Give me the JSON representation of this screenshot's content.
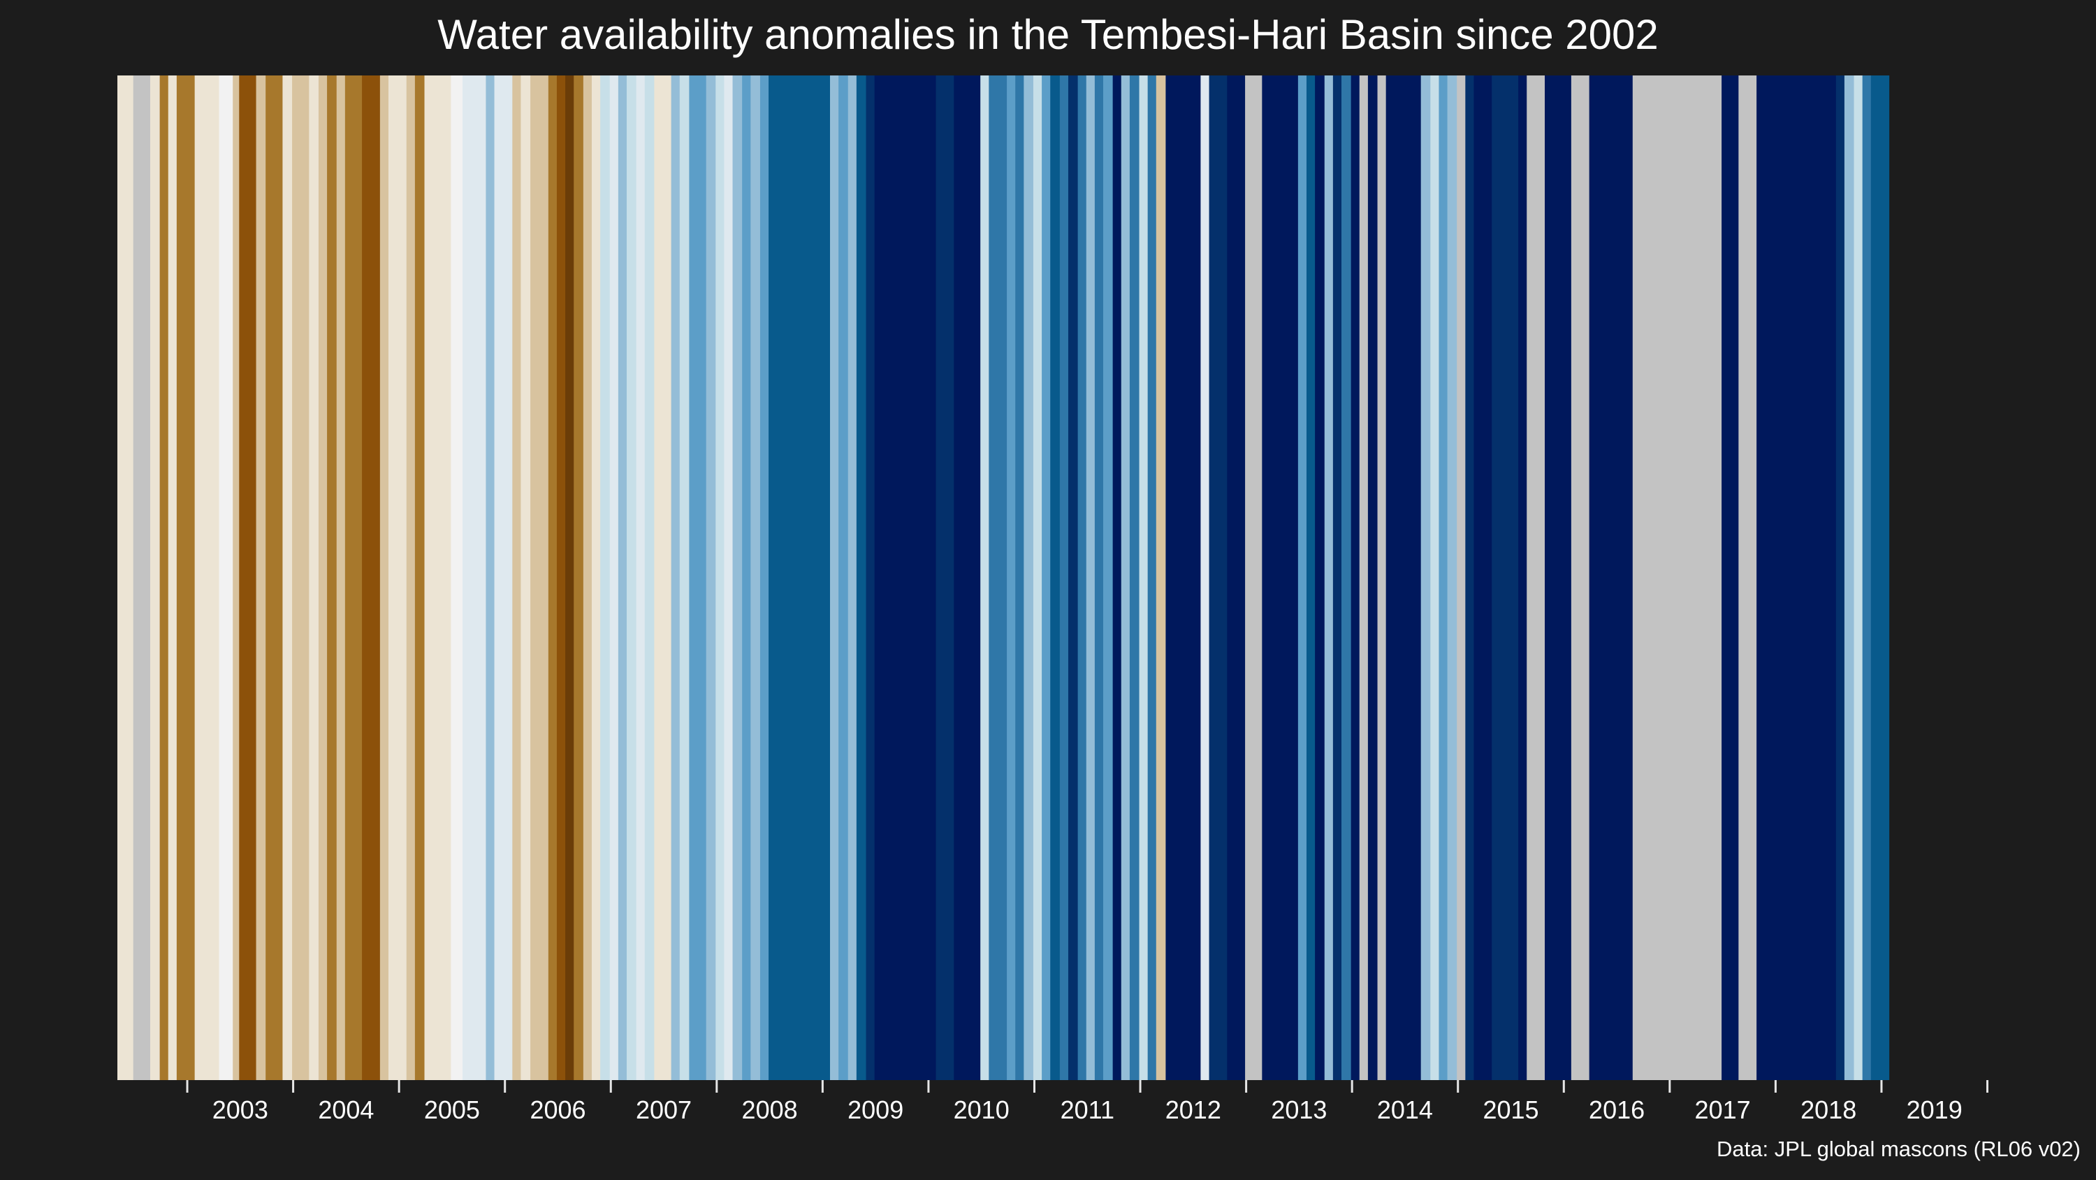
{
  "chart_data": {
    "type": "heatmap",
    "title": "Water availability anomalies in the Tembesi-Hari Basin since 2002",
    "caption": "Data: JPL global mascons (RL06 v02)",
    "xlabel": "",
    "ylabel": "",
    "x_tick_labels": [
      "2003",
      "2004",
      "2005",
      "2006",
      "2007",
      "2008",
      "2009",
      "2010",
      "2011",
      "2012",
      "2013",
      "2014",
      "2015",
      "2016",
      "2017",
      "2018",
      "2019"
    ],
    "time_range": [
      "2002-04",
      "2020-01"
    ],
    "color_scale": {
      "palette": "brown-to-blue diverging",
      "missing_color": "#c3c3c3",
      "colors": [
        "#8c510a",
        "#bf812d",
        "#dfc27d",
        "#f6e8c3",
        "#f5f5f5",
        "#c7eae5",
        "#80cdc1",
        "#35978f",
        "#01665e"
      ]
    },
    "stripes": [
      {
        "start": 2002.29,
        "end": 2002.44,
        "color": "#ece4d4"
      },
      {
        "start": 2002.44,
        "end": 2002.6,
        "color": "#c3c3c3"
      },
      {
        "start": 2002.6,
        "end": 2002.69,
        "color": "#ece4d4"
      },
      {
        "start": 2002.69,
        "end": 2002.77,
        "color": "#a7782c"
      },
      {
        "start": 2002.77,
        "end": 2002.85,
        "color": "#ece4d4"
      },
      {
        "start": 2002.85,
        "end": 2003.02,
        "color": "#a7782c"
      },
      {
        "start": 2003.02,
        "end": 2003.25,
        "color": "#ece4d4"
      },
      {
        "start": 2003.25,
        "end": 2003.38,
        "color": "#f2f2f2"
      },
      {
        "start": 2003.38,
        "end": 2003.44,
        "color": "#d8c39f"
      },
      {
        "start": 2003.44,
        "end": 2003.6,
        "color": "#8c510a"
      },
      {
        "start": 2003.6,
        "end": 2003.69,
        "color": "#d8c39f"
      },
      {
        "start": 2003.69,
        "end": 2003.85,
        "color": "#a7782c"
      },
      {
        "start": 2003.85,
        "end": 2003.94,
        "color": "#ece4d4"
      },
      {
        "start": 2003.94,
        "end": 2004.1,
        "color": "#d8c39f"
      },
      {
        "start": 2004.1,
        "end": 2004.19,
        "color": "#ece4d4"
      },
      {
        "start": 2004.19,
        "end": 2004.27,
        "color": "#d8c39f"
      },
      {
        "start": 2004.27,
        "end": 2004.36,
        "color": "#a7782c"
      },
      {
        "start": 2004.36,
        "end": 2004.44,
        "color": "#d8c39f"
      },
      {
        "start": 2004.44,
        "end": 2004.6,
        "color": "#a7782c"
      },
      {
        "start": 2004.6,
        "end": 2004.77,
        "color": "#8c510a"
      },
      {
        "start": 2004.77,
        "end": 2004.85,
        "color": "#d8c39f"
      },
      {
        "start": 2004.85,
        "end": 2005.02,
        "color": "#ece4d4"
      },
      {
        "start": 2005.02,
        "end": 2005.1,
        "color": "#d8c39f"
      },
      {
        "start": 2005.1,
        "end": 2005.19,
        "color": "#a7782c"
      },
      {
        "start": 2005.19,
        "end": 2005.44,
        "color": "#ece4d4"
      },
      {
        "start": 2005.44,
        "end": 2005.55,
        "color": "#f2f2f2"
      },
      {
        "start": 2005.55,
        "end": 2005.77,
        "color": "#dfe9ef"
      },
      {
        "start": 2005.77,
        "end": 2005.85,
        "color": "#94bdd7"
      },
      {
        "start": 2005.85,
        "end": 2006.02,
        "color": "#dfe9ef"
      },
      {
        "start": 2006.02,
        "end": 2006.1,
        "color": "#d8c39f"
      },
      {
        "start": 2006.1,
        "end": 2006.19,
        "color": "#ece4d4"
      },
      {
        "start": 2006.19,
        "end": 2006.36,
        "color": "#d8c39f"
      },
      {
        "start": 2006.36,
        "end": 2006.44,
        "color": "#a7782c"
      },
      {
        "start": 2006.44,
        "end": 2006.52,
        "color": "#8c510a"
      },
      {
        "start": 2006.52,
        "end": 2006.6,
        "color": "#6b3d08"
      },
      {
        "start": 2006.6,
        "end": 2006.69,
        "color": "#a7782c"
      },
      {
        "start": 2006.69,
        "end": 2006.77,
        "color": "#d8c39f"
      },
      {
        "start": 2006.77,
        "end": 2006.85,
        "color": "#ece4d4"
      },
      {
        "start": 2006.85,
        "end": 2006.94,
        "color": "#c7dfe8"
      },
      {
        "start": 2006.94,
        "end": 2007.02,
        "color": "#dfe9ef"
      },
      {
        "start": 2007.02,
        "end": 2007.1,
        "color": "#94bdd7"
      },
      {
        "start": 2007.1,
        "end": 2007.19,
        "color": "#c7dfe8"
      },
      {
        "start": 2007.19,
        "end": 2007.27,
        "color": "#dfe9ef"
      },
      {
        "start": 2007.27,
        "end": 2007.36,
        "color": "#c7dfe8"
      },
      {
        "start": 2007.36,
        "end": 2007.52,
        "color": "#ece4d4"
      },
      {
        "start": 2007.52,
        "end": 2007.6,
        "color": "#94bdd7"
      },
      {
        "start": 2007.6,
        "end": 2007.69,
        "color": "#c7dfe8"
      },
      {
        "start": 2007.69,
        "end": 2007.85,
        "color": "#5c9ec8"
      },
      {
        "start": 2007.85,
        "end": 2007.94,
        "color": "#94bdd7"
      },
      {
        "start": 2007.94,
        "end": 2008.02,
        "color": "#c7dfe8"
      },
      {
        "start": 2008.02,
        "end": 2008.1,
        "color": "#dfe9ef"
      },
      {
        "start": 2008.1,
        "end": 2008.19,
        "color": "#94bdd7"
      },
      {
        "start": 2008.19,
        "end": 2008.27,
        "color": "#5c9ec8"
      },
      {
        "start": 2008.27,
        "end": 2008.36,
        "color": "#94bdd7"
      },
      {
        "start": 2008.36,
        "end": 2008.44,
        "color": "#5c9ec8"
      },
      {
        "start": 2008.44,
        "end": 2009.02,
        "color": "#085a8c"
      },
      {
        "start": 2009.02,
        "end": 2009.1,
        "color": "#94bdd7"
      },
      {
        "start": 2009.1,
        "end": 2009.19,
        "color": "#5c9ec8"
      },
      {
        "start": 2009.19,
        "end": 2009.27,
        "color": "#94bdd7"
      },
      {
        "start": 2009.27,
        "end": 2009.36,
        "color": "#085a8c"
      },
      {
        "start": 2009.36,
        "end": 2009.44,
        "color": "#04306b"
      },
      {
        "start": 2009.44,
        "end": 2010.02,
        "color": "#00185c"
      },
      {
        "start": 2010.02,
        "end": 2010.19,
        "color": "#04306b"
      },
      {
        "start": 2010.19,
        "end": 2010.44,
        "color": "#00185c"
      },
      {
        "start": 2010.44,
        "end": 2010.52,
        "color": "#c7dfe8"
      },
      {
        "start": 2010.52,
        "end": 2010.69,
        "color": "#2f77a8"
      },
      {
        "start": 2010.69,
        "end": 2010.77,
        "color": "#5c9ec8"
      },
      {
        "start": 2010.77,
        "end": 2010.85,
        "color": "#2f77a8"
      },
      {
        "start": 2010.85,
        "end": 2010.94,
        "color": "#94bdd7"
      },
      {
        "start": 2010.94,
        "end": 2011.02,
        "color": "#c7dfe8"
      },
      {
        "start": 2011.02,
        "end": 2011.1,
        "color": "#5c9ec8"
      },
      {
        "start": 2011.1,
        "end": 2011.19,
        "color": "#085a8c"
      },
      {
        "start": 2011.19,
        "end": 2011.27,
        "color": "#2f77a8"
      },
      {
        "start": 2011.27,
        "end": 2011.36,
        "color": "#04306b"
      },
      {
        "start": 2011.36,
        "end": 2011.44,
        "color": "#2f77a8"
      },
      {
        "start": 2011.44,
        "end": 2011.52,
        "color": "#94bdd7"
      },
      {
        "start": 2011.52,
        "end": 2011.6,
        "color": "#2f77a8"
      },
      {
        "start": 2011.6,
        "end": 2011.69,
        "color": "#5c9ec8"
      },
      {
        "start": 2011.69,
        "end": 2011.77,
        "color": "#00185c"
      },
      {
        "start": 2011.77,
        "end": 2011.85,
        "color": "#94bdd7"
      },
      {
        "start": 2011.85,
        "end": 2011.94,
        "color": "#2f77a8"
      },
      {
        "start": 2011.94,
        "end": 2012.02,
        "color": "#c7dfe8"
      },
      {
        "start": 2012.02,
        "end": 2012.1,
        "color": "#2f77a8"
      },
      {
        "start": 2012.1,
        "end": 2012.19,
        "color": "#d8c39f"
      },
      {
        "start": 2012.19,
        "end": 2012.52,
        "color": "#00185c"
      },
      {
        "start": 2012.52,
        "end": 2012.6,
        "color": "#dfe9ef"
      },
      {
        "start": 2012.6,
        "end": 2012.77,
        "color": "#04306b"
      },
      {
        "start": 2012.77,
        "end": 2012.94,
        "color": "#00185c"
      },
      {
        "start": 2012.94,
        "end": 2013.1,
        "color": "#c3c3c3"
      },
      {
        "start": 2013.1,
        "end": 2013.44,
        "color": "#00185c"
      },
      {
        "start": 2013.44,
        "end": 2013.52,
        "color": "#5c9ec8"
      },
      {
        "start": 2013.52,
        "end": 2013.6,
        "color": "#085a8c"
      },
      {
        "start": 2013.6,
        "end": 2013.69,
        "color": "#00185c"
      },
      {
        "start": 2013.69,
        "end": 2013.77,
        "color": "#94bdd7"
      },
      {
        "start": 2013.77,
        "end": 2013.85,
        "color": "#04306b"
      },
      {
        "start": 2013.85,
        "end": 2013.94,
        "color": "#2f77a8"
      },
      {
        "start": 2013.94,
        "end": 2014.02,
        "color": "#00185c"
      },
      {
        "start": 2014.02,
        "end": 2014.1,
        "color": "#c3c3c3"
      },
      {
        "start": 2014.1,
        "end": 2014.19,
        "color": "#00185c"
      },
      {
        "start": 2014.19,
        "end": 2014.27,
        "color": "#c3c3c3"
      },
      {
        "start": 2014.27,
        "end": 2014.6,
        "color": "#00185c"
      },
      {
        "start": 2014.6,
        "end": 2014.69,
        "color": "#94bdd7"
      },
      {
        "start": 2014.69,
        "end": 2014.77,
        "color": "#c7dfe8"
      },
      {
        "start": 2014.77,
        "end": 2014.85,
        "color": "#5c9ec8"
      },
      {
        "start": 2014.85,
        "end": 2014.94,
        "color": "#94bdd7"
      },
      {
        "start": 2014.94,
        "end": 2015.02,
        "color": "#c3c3c3"
      },
      {
        "start": 2015.02,
        "end": 2015.1,
        "color": "#04306b"
      },
      {
        "start": 2015.1,
        "end": 2015.27,
        "color": "#00185c"
      },
      {
        "start": 2015.27,
        "end": 2015.52,
        "color": "#04306b"
      },
      {
        "start": 2015.52,
        "end": 2015.6,
        "color": "#00185c"
      },
      {
        "start": 2015.6,
        "end": 2015.77,
        "color": "#c3c3c3"
      },
      {
        "start": 2015.77,
        "end": 2016.02,
        "color": "#00185c"
      },
      {
        "start": 2016.02,
        "end": 2016.19,
        "color": "#c3c3c3"
      },
      {
        "start": 2016.19,
        "end": 2016.27,
        "color": "#00185c"
      },
      {
        "start": 2016.27,
        "end": 2016.6,
        "color": "#00185c"
      },
      {
        "start": 2016.6,
        "end": 2017.44,
        "color": "#c3c3c3"
      },
      {
        "start": 2017.44,
        "end": 2017.6,
        "color": "#00185c"
      },
      {
        "start": 2017.6,
        "end": 2017.77,
        "color": "#c3c3c3"
      },
      {
        "start": 2017.77,
        "end": 2018.52,
        "color": "#00185c"
      },
      {
        "start": 2018.52,
        "end": 2018.6,
        "color": "#04306b"
      },
      {
        "start": 2018.6,
        "end": 2018.69,
        "color": "#94bdd7"
      },
      {
        "start": 2018.69,
        "end": 2018.77,
        "color": "#c7dfe8"
      },
      {
        "start": 2018.77,
        "end": 2018.85,
        "color": "#2f77a8"
      },
      {
        "start": 2018.85,
        "end": 2019.02,
        "color": "#085a8c"
      }
    ]
  }
}
